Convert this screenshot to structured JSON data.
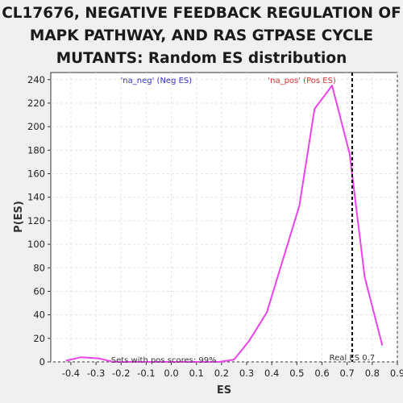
{
  "chart_data": {
    "type": "line",
    "title_lines": [
      "CL17676, NEGATIVE FEEDBACK REGULATION OF",
      "MAPK PATHWAY, AND RAS GTPASE CYCLE",
      "MUTANTS: Random ES distribution"
    ],
    "xlabel": "ES",
    "ylabel": "P(ES)",
    "xlim": [
      -0.48,
      0.9
    ],
    "ylim": [
      0,
      246
    ],
    "x_ticks": [
      -0.4,
      -0.3,
      -0.2,
      -0.1,
      0.0,
      0.1,
      0.2,
      0.3,
      0.4,
      0.5,
      0.6,
      0.7,
      0.8,
      0.9
    ],
    "x_tick_labels": [
      "-0.4",
      "-0.3",
      "-0.2",
      "-0.1",
      "0.0",
      "0.1",
      "0.2",
      "0.3",
      "0.4",
      "0.5",
      "0.6",
      "0.7",
      "0.8",
      "0.9"
    ],
    "y_ticks": [
      0,
      20,
      40,
      60,
      80,
      100,
      120,
      140,
      160,
      180,
      200,
      220,
      240
    ],
    "y_tick_labels": [
      "0",
      "20",
      "40",
      "60",
      "80",
      "100",
      "120",
      "140",
      "160",
      "180",
      "200",
      "220",
      "240"
    ],
    "grid": true,
    "series": [
      {
        "color": "#ee44ee",
        "x": [
          -0.42,
          -0.36,
          -0.29,
          -0.23,
          -0.17,
          -0.1,
          -0.04,
          0.03,
          0.09,
          0.16,
          0.19,
          0.25,
          0.31,
          0.38,
          0.44,
          0.51,
          0.57,
          0.64,
          0.71,
          0.77,
          0.84
        ],
        "y": [
          1,
          4,
          3,
          0,
          0,
          0,
          0,
          0,
          0,
          0,
          0,
          2,
          18,
          42,
          84,
          133,
          215,
          235,
          177,
          72,
          14
        ]
      }
    ],
    "reference_line": {
      "x": 0.72,
      "label": "Real ES 0.7",
      "color": "#000000"
    },
    "annotations": [
      {
        "text": "'na_neg' (Neg ES)",
        "x": -0.06,
        "y": 240,
        "color": "#3333cc"
      },
      {
        "text": "'na_pos' (Pos ES)",
        "x": 0.52,
        "y": 240,
        "color": "#dd3333"
      },
      {
        "text": "Sets with pos scores: 99%",
        "x": -0.03,
        "y": 2,
        "color": "#333333"
      }
    ]
  }
}
